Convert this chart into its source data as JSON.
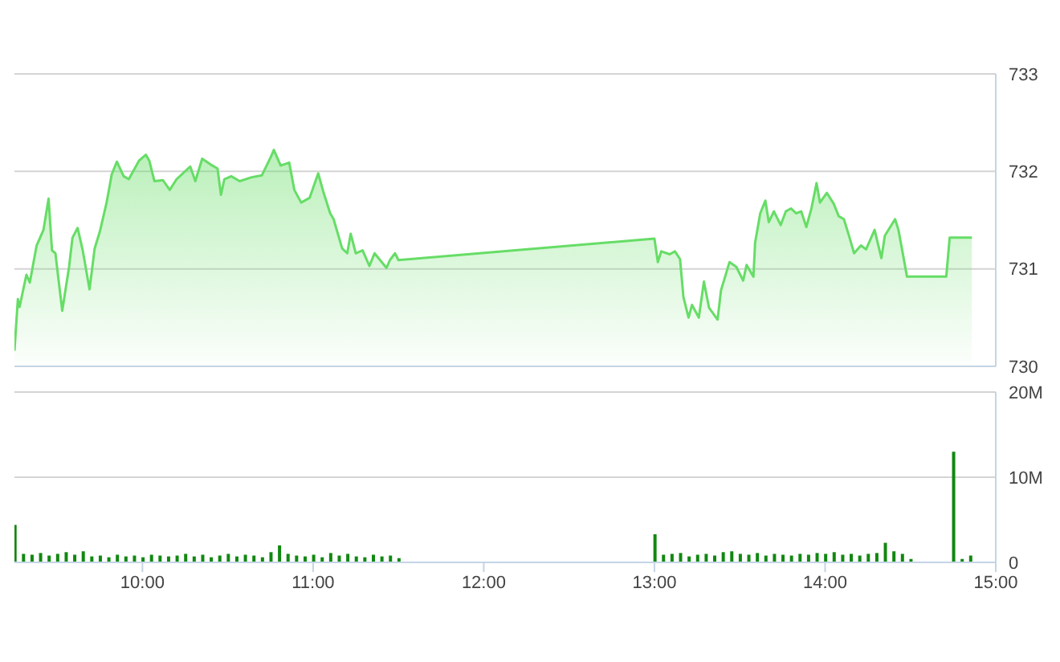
{
  "chart_data": [
    {
      "type": "area",
      "color": "#66dd66",
      "grid": "y",
      "tick_labels": "y",
      "xlim": [
        9.25,
        15
      ],
      "ylim": [
        730,
        733
      ],
      "yticks": [
        730,
        731,
        732,
        733
      ],
      "x": [
        9.25,
        9.27,
        9.28,
        9.32,
        9.34,
        9.38,
        9.42,
        9.45,
        9.47,
        9.49,
        9.53,
        9.57,
        9.59,
        9.62,
        9.65,
        9.69,
        9.72,
        9.75,
        9.79,
        9.82,
        9.85,
        9.89,
        9.92,
        9.98,
        10.02,
        10.04,
        10.07,
        10.12,
        10.16,
        10.2,
        10.28,
        10.31,
        10.35,
        10.4,
        10.44,
        10.46,
        10.48,
        10.52,
        10.57,
        10.64,
        10.7,
        10.75,
        10.77,
        10.81,
        10.86,
        10.89,
        10.93,
        10.98,
        11.03,
        11.06,
        11.1,
        11.12,
        11.17,
        11.2,
        11.22,
        11.25,
        11.29,
        11.33,
        11.36,
        11.43,
        11.45,
        11.48,
        11.5,
        13.0,
        13.02,
        13.04,
        13.09,
        13.12,
        13.15,
        13.17,
        13.2,
        13.22,
        13.26,
        13.29,
        13.32,
        13.37,
        13.39,
        13.44,
        13.48,
        13.52,
        13.54,
        13.58,
        13.59,
        13.62,
        13.65,
        13.67,
        13.7,
        13.74,
        13.77,
        13.8,
        13.83,
        13.86,
        13.89,
        13.92,
        13.95,
        13.97,
        14.01,
        14.05,
        14.08,
        14.11,
        14.14,
        14.17,
        14.21,
        14.24,
        14.29,
        14.33,
        14.35,
        14.41,
        14.43,
        14.48,
        14.71,
        14.73,
        14.86
      ],
      "values": [
        730.16,
        730.69,
        730.61,
        730.94,
        730.86,
        731.24,
        731.4,
        731.72,
        731.19,
        731.16,
        730.57,
        731.02,
        731.32,
        731.42,
        731.19,
        730.79,
        731.21,
        731.38,
        731.68,
        731.97,
        732.1,
        731.95,
        731.92,
        732.11,
        732.17,
        732.11,
        731.9,
        731.91,
        731.81,
        731.92,
        732.05,
        731.9,
        732.13,
        732.07,
        732.03,
        731.76,
        731.92,
        731.95,
        731.9,
        731.94,
        731.96,
        732.14,
        732.22,
        732.06,
        732.09,
        731.81,
        731.68,
        731.73,
        731.98,
        731.79,
        731.57,
        731.51,
        731.21,
        731.16,
        731.36,
        731.16,
        731.19,
        731.03,
        731.16,
        731.01,
        731.09,
        731.16,
        731.09,
        731.31,
        731.07,
        731.18,
        731.15,
        731.18,
        731.1,
        730.71,
        730.5,
        730.63,
        730.5,
        730.87,
        730.6,
        730.48,
        730.78,
        731.07,
        731.02,
        730.88,
        731.04,
        730.92,
        731.27,
        731.57,
        731.7,
        731.48,
        731.59,
        731.45,
        731.59,
        731.62,
        731.57,
        731.59,
        731.43,
        731.62,
        731.88,
        731.68,
        731.78,
        731.67,
        731.54,
        731.51,
        731.34,
        731.16,
        731.24,
        731.2,
        731.4,
        731.11,
        731.34,
        731.51,
        731.4,
        730.92,
        730.92,
        731.32,
        731.32
      ]
    },
    {
      "type": "bar",
      "color": "#118811",
      "grid": "y",
      "xlim": [
        9.25,
        15
      ],
      "ylim": [
        0,
        20000000
      ],
      "yticks": [
        0,
        {
          "value": 10000000,
          "label": "10M"
        },
        {
          "value": 20000000,
          "label": "20M"
        }
      ],
      "xticks": [
        {
          "value": 10,
          "label": "10:00"
        },
        {
          "value": 11,
          "label": "11:00"
        },
        {
          "value": 12,
          "label": "12:00"
        },
        {
          "value": 13,
          "label": "13:00"
        },
        {
          "value": 14,
          "label": "14:00"
        },
        {
          "value": 15,
          "label": "15:00"
        }
      ],
      "x": [
        9.25,
        9.3,
        9.35,
        9.4,
        9.45,
        9.5,
        9.55,
        9.6,
        9.65,
        9.7,
        9.75,
        9.8,
        9.85,
        9.9,
        9.95,
        10.0,
        10.05,
        10.1,
        10.15,
        10.2,
        10.25,
        10.3,
        10.35,
        10.4,
        10.45,
        10.5,
        10.55,
        10.6,
        10.65,
        10.7,
        10.75,
        10.8,
        10.85,
        10.9,
        10.95,
        11.0,
        11.05,
        11.1,
        11.15,
        11.2,
        11.25,
        11.3,
        11.35,
        11.4,
        11.45,
        11.5,
        13.0,
        13.05,
        13.1,
        13.15,
        13.2,
        13.25,
        13.3,
        13.35,
        13.4,
        13.45,
        13.5,
        13.55,
        13.6,
        13.65,
        13.7,
        13.75,
        13.8,
        13.85,
        13.9,
        13.95,
        14.0,
        14.05,
        14.1,
        14.15,
        14.2,
        14.25,
        14.3,
        14.35,
        14.4,
        14.45,
        14.5,
        14.55,
        14.6,
        14.65,
        14.7,
        14.75,
        14.8,
        14.85
      ],
      "values": [
        4400000,
        1000000,
        900000,
        1100000,
        800000,
        1000000,
        1200000,
        900000,
        1300000,
        700000,
        800000,
        600000,
        900000,
        700000,
        800000,
        600000,
        900000,
        800000,
        700000,
        800000,
        1000000,
        700000,
        900000,
        600000,
        800000,
        1000000,
        700000,
        900000,
        800000,
        600000,
        1200000,
        2000000,
        1000000,
        800000,
        700000,
        900000,
        600000,
        1100000,
        800000,
        1000000,
        700000,
        600000,
        900000,
        700000,
        800000,
        500000,
        3300000,
        900000,
        1000000,
        1100000,
        700000,
        900000,
        1000000,
        800000,
        1200000,
        1300000,
        1000000,
        900000,
        1100000,
        800000,
        1000000,
        900000,
        800000,
        1000000,
        900000,
        1100000,
        1000000,
        1200000,
        900000,
        1000000,
        800000,
        1000000,
        1100000,
        2300000,
        1300000,
        1000000,
        400000,
        null,
        null,
        null,
        null,
        13000000,
        400000,
        800000
      ]
    }
  ]
}
